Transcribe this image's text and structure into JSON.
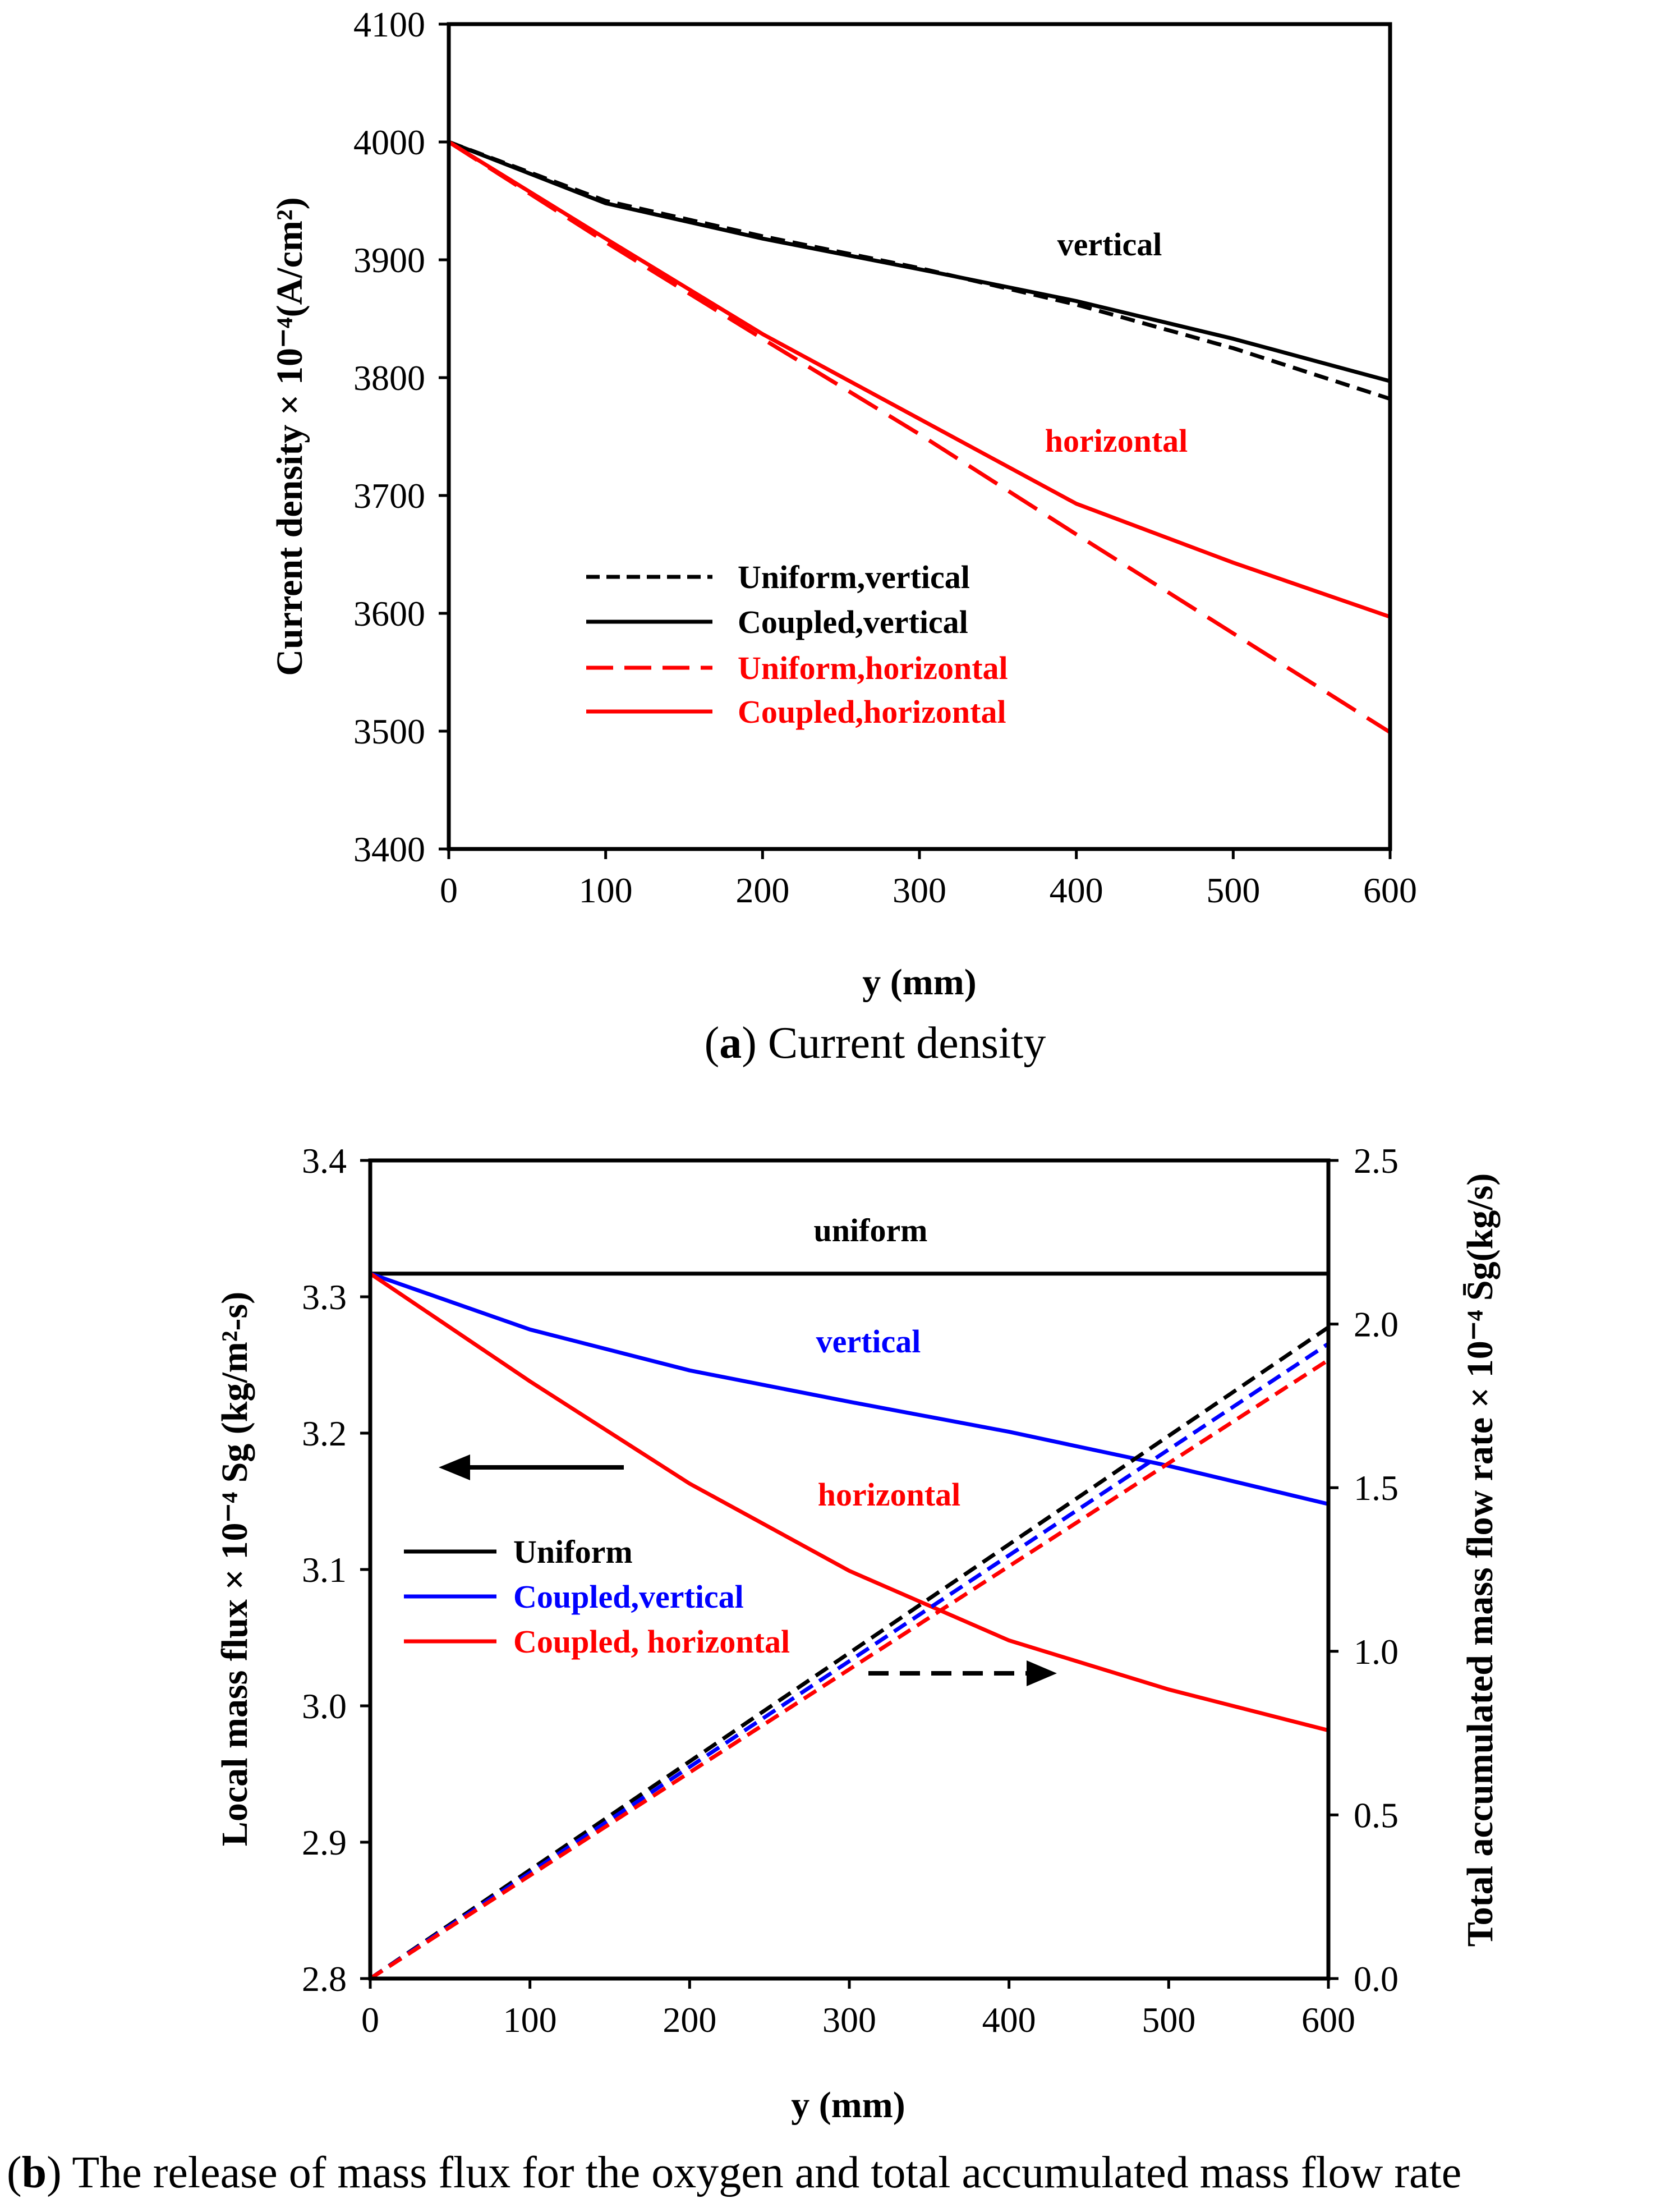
{
  "colors": {
    "black": "#000000",
    "red": "#ff0000",
    "blue": "#0000ff"
  },
  "chart_data": [
    {
      "type": "line",
      "panel": "a",
      "caption": {
        "letter": "a",
        "text": " Current density"
      },
      "xlabel": "y (mm)",
      "ylabel": "Current density × 10⁻⁴(A/cm²)",
      "xlim": [
        0,
        600
      ],
      "ylim": [
        3400,
        4100
      ],
      "xticks": [
        0,
        100,
        200,
        300,
        400,
        500,
        600
      ],
      "yticks": [
        3400,
        3500,
        3600,
        3700,
        3800,
        3900,
        4000,
        4100
      ],
      "grid": false,
      "legend_position": "lower-left",
      "series": [
        {
          "name": "Uniform,vertical",
          "color": "black",
          "dash": "dashed",
          "x": [
            0,
            100,
            200,
            300,
            400,
            500,
            600
          ],
          "y": [
            4000,
            3950,
            3920,
            3893,
            3862,
            3825,
            3782
          ]
        },
        {
          "name": "Coupled,vertical",
          "color": "black",
          "dash": "solid",
          "x": [
            0,
            100,
            200,
            300,
            400,
            500,
            600
          ],
          "y": [
            4000,
            3948,
            3918,
            3892,
            3865,
            3833,
            3797
          ]
        },
        {
          "name": "Uniform,horizontal",
          "color": "red",
          "dash": "longdash",
          "x": [
            0,
            100,
            200,
            300,
            400,
            500,
            600
          ],
          "y": [
            4000,
            3915,
            3833,
            3752,
            3667,
            3583,
            3499
          ]
        },
        {
          "name": "Coupled,horizontal",
          "color": "red",
          "dash": "solid",
          "x": [
            0,
            100,
            200,
            300,
            400,
            500,
            600
          ],
          "y": [
            4000,
            3918,
            3837,
            3765,
            3693,
            3643,
            3597
          ]
        }
      ],
      "annotations": [
        {
          "text": "vertical",
          "color": "black"
        },
        {
          "text": "horizontal",
          "color": "red"
        }
      ]
    },
    {
      "type": "line",
      "panel": "b",
      "caption": {
        "letter": "b",
        "text": " The release of mass flux for the oxygen and total accumulated mass flow rate"
      },
      "xlabel": "y (mm)",
      "ylabel": "Local mass flux × 10⁻⁴ Sg (kg/m²-s)",
      "y2label": "Total accumulated mass flow rate × 10⁻⁴ S̄g(kg/s)",
      "xlim": [
        0,
        600
      ],
      "ylim": [
        2.8,
        3.4
      ],
      "y2lim": [
        0.0,
        2.5
      ],
      "xticks": [
        0,
        100,
        200,
        300,
        400,
        500,
        600
      ],
      "yticks": [
        "2.8",
        "2.9",
        "3.0",
        "3.1",
        "3.2",
        "3.3",
        "3.4"
      ],
      "y2ticks": [
        "0.0",
        "0.5",
        "1.0",
        "1.5",
        "2.0",
        "2.5"
      ],
      "grid": false,
      "legend_position": "center-left",
      "series": [
        {
          "name": "Uniform",
          "color": "black",
          "dash": "solid",
          "axis": "left",
          "x": [
            0,
            600
          ],
          "y": [
            3.317,
            3.317
          ]
        },
        {
          "name": "Coupled,vertical",
          "color": "blue",
          "dash": "solid",
          "axis": "left",
          "x": [
            0,
            100,
            200,
            300,
            400,
            500,
            600
          ],
          "y": [
            3.317,
            3.276,
            3.246,
            3.223,
            3.201,
            3.176,
            3.148
          ]
        },
        {
          "name": "Coupled, horizontal",
          "color": "red",
          "dash": "solid",
          "axis": "left",
          "x": [
            0,
            100,
            200,
            300,
            400,
            500,
            600
          ],
          "y": [
            3.317,
            3.238,
            3.163,
            3.099,
            3.048,
            3.012,
            2.982
          ]
        },
        {
          "name": "Uniform (accumulated)",
          "color": "black",
          "dash": "dashed",
          "axis": "right",
          "x": [
            0,
            600
          ],
          "y": [
            0.0,
            1.99
          ]
        },
        {
          "name": "Coupled,vertical (accumulated)",
          "color": "blue",
          "dash": "dashed",
          "axis": "right",
          "x": [
            0,
            600
          ],
          "y": [
            0.0,
            1.94
          ]
        },
        {
          "name": "Coupled, horizontal (accumulated)",
          "color": "red",
          "dash": "dashed",
          "axis": "right",
          "x": [
            0,
            600
          ],
          "y": [
            0.0,
            1.89
          ]
        }
      ],
      "legend_entries": [
        "Uniform",
        "Coupled,vertical",
        "Coupled, horizontal"
      ],
      "annotations": [
        {
          "text": "uniform",
          "color": "black"
        },
        {
          "text": "vertical",
          "color": "blue"
        },
        {
          "text": "horizontal",
          "color": "red"
        }
      ]
    }
  ]
}
